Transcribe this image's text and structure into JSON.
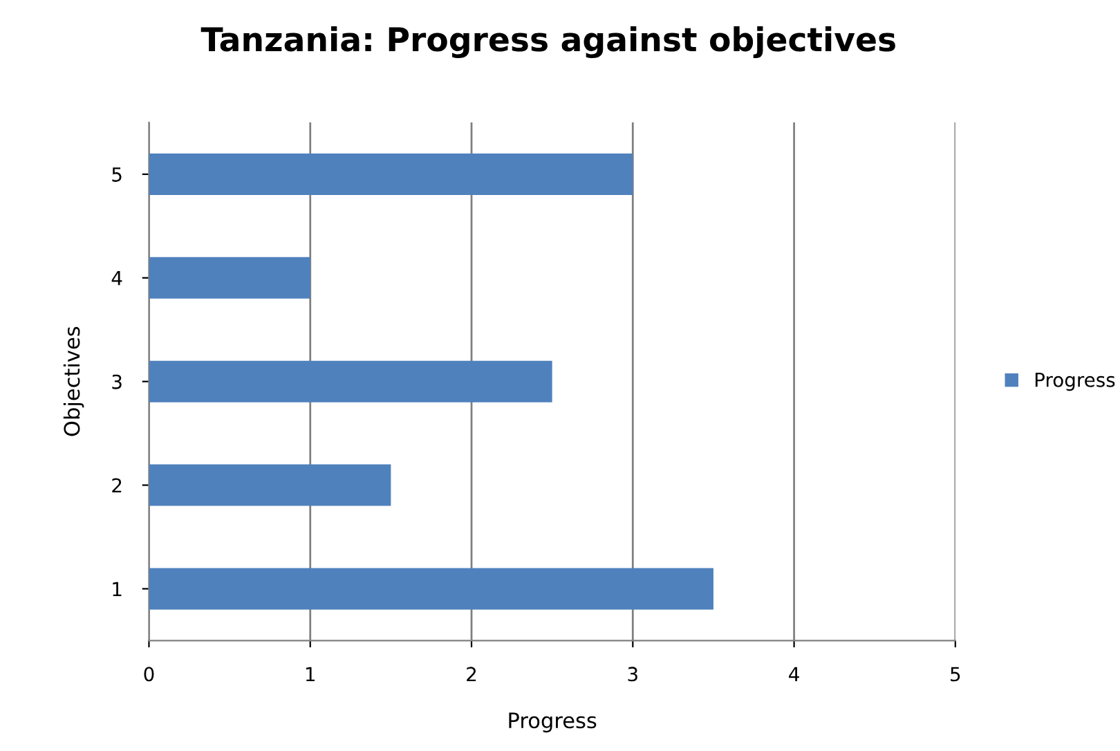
{
  "chart_data": {
    "type": "bar",
    "orientation": "horizontal",
    "title": "Tanzania: Progress against objectives",
    "xlabel": "Progress",
    "ylabel": "Objectives",
    "categories": [
      "5",
      "4",
      "3",
      "2",
      "1"
    ],
    "series": [
      {
        "name": "Progress",
        "color": "#4f81bd",
        "values": [
          3,
          1,
          2.5,
          1.5,
          3.5
        ]
      }
    ],
    "xlim": [
      0,
      5
    ],
    "xticks": [
      0,
      1,
      2,
      3,
      4,
      5
    ],
    "grid": "x",
    "legend": "right"
  }
}
